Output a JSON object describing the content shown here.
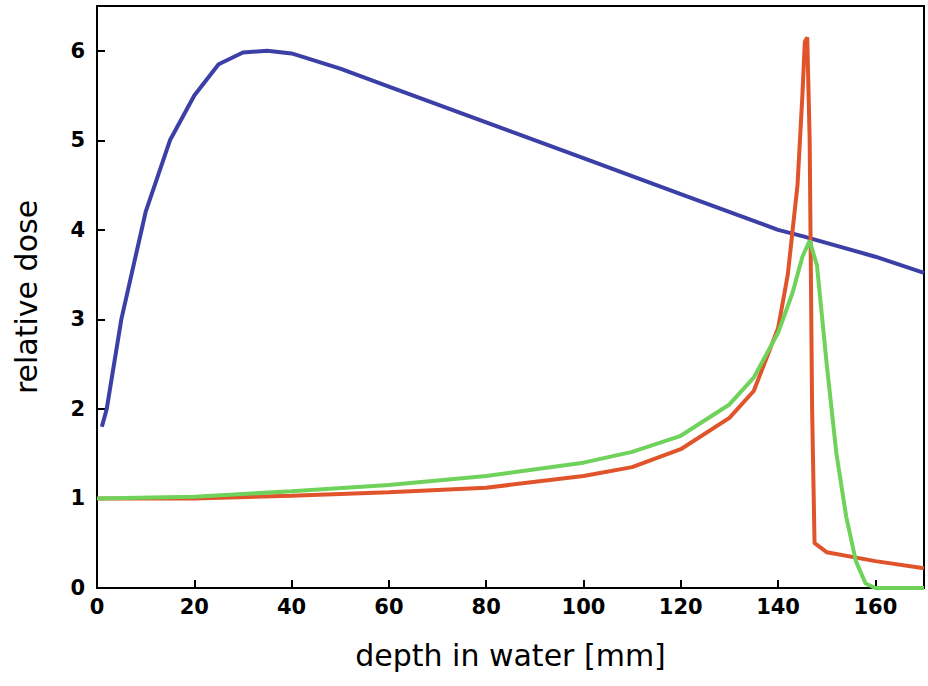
{
  "chart_data": {
    "type": "line",
    "x_label": "depth in water [mm]",
    "y_label": "relative dose",
    "xlim": [
      0,
      170
    ],
    "xticks": [
      0,
      20,
      40,
      60,
      80,
      100,
      120,
      140,
      160
    ],
    "ylim": [
      0,
      6.5
    ],
    "yticks": [
      0,
      1,
      2,
      3,
      4,
      5,
      6
    ],
    "grid": false,
    "series": [
      {
        "color": "#3b3fa6",
        "line_style": "solid",
        "x": [
          1,
          2,
          5,
          10,
          15,
          20,
          25,
          30,
          35,
          40,
          50,
          60,
          80,
          100,
          120,
          140,
          145,
          160,
          170
        ],
        "values": [
          1.8,
          2.0,
          3.0,
          4.2,
          5.0,
          5.5,
          5.85,
          5.98,
          6.0,
          5.97,
          5.8,
          5.6,
          5.2,
          4.8,
          4.4,
          4.0,
          3.93,
          3.7,
          3.52
        ]
      },
      {
        "color": "#e0532b",
        "line_style": "solid",
        "x": [
          0,
          20,
          40,
          60,
          80,
          100,
          110,
          120,
          130,
          135,
          140,
          142,
          144,
          145,
          145.5,
          146,
          146.5,
          147,
          147.5,
          150,
          160,
          170
        ],
        "values": [
          1.0,
          1.0,
          1.03,
          1.07,
          1.12,
          1.25,
          1.35,
          1.55,
          1.9,
          2.2,
          2.9,
          3.5,
          4.5,
          5.5,
          6.1,
          6.15,
          5.0,
          2.0,
          0.5,
          0.4,
          0.3,
          0.22
        ]
      },
      {
        "color": "#6fd25a",
        "line_style": "solid",
        "x": [
          0,
          20,
          40,
          60,
          80,
          100,
          110,
          120,
          130,
          135,
          140,
          143,
          145,
          146.5,
          148,
          150,
          152,
          154,
          156,
          158,
          160,
          170
        ],
        "values": [
          1.0,
          1.02,
          1.08,
          1.15,
          1.25,
          1.4,
          1.52,
          1.7,
          2.05,
          2.35,
          2.85,
          3.3,
          3.7,
          3.88,
          3.6,
          2.5,
          1.5,
          0.8,
          0.3,
          0.05,
          0,
          0
        ]
      }
    ]
  }
}
